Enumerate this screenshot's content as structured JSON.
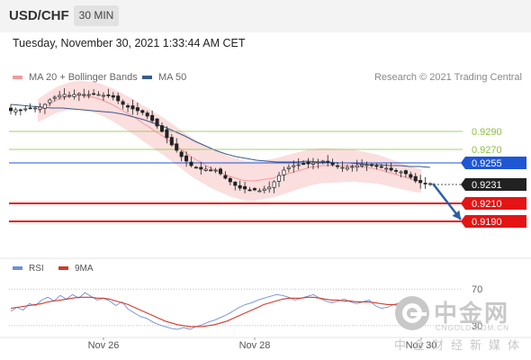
{
  "header": {
    "pair": "USD/CHF",
    "timeframe": "30 MIN"
  },
  "datetime": "Tuesday, November 30, 2021 1:33:44 AM CET",
  "legend": {
    "bollinger_label": "MA 20 + Bollinger Bands",
    "ma50_label": "MA 50",
    "research": "Research © 2021 Trading Central"
  },
  "rsi_legend": {
    "rsi_label": "RSI",
    "ma_label": "9MA"
  },
  "watermark": {
    "brand": "中金网",
    "url": "CNGOLD.COM.CN",
    "slogan": "中金财经新媒体"
  },
  "colors": {
    "candle": "#222222",
    "bollinger_band": "#fbdede",
    "ma20": "#f29a9a",
    "ma50": "#3a5a8c",
    "level_green": "#8bbf3c",
    "level_blue": "#1f56d6",
    "level_red": "#e41414",
    "current_price": "#222222",
    "arrow": "#2a5ea8",
    "rsi": "#6f8fd6",
    "rsi_ma": "#d33a2a"
  },
  "chart_data": [
    {
      "type": "candlestick",
      "xlabel": "",
      "ylabel": "",
      "x_ticks": [
        "Nov 26",
        "Nov 28",
        "Nov 30"
      ],
      "ylim": [
        0.9179,
        0.9339
      ],
      "levels": [
        {
          "value": 0.929,
          "label": "0.9290",
          "style": "green-line"
        },
        {
          "value": 0.927,
          "label": "0.9270",
          "style": "green-line"
        },
        {
          "value": 0.9255,
          "label": "0.9255",
          "style": "blue-tag"
        },
        {
          "value": 0.9231,
          "label": "0.9231",
          "style": "current-price-tag"
        },
        {
          "value": 0.921,
          "label": "0.9210",
          "style": "red-tag"
        },
        {
          "value": 0.919,
          "label": "0.9190",
          "style": "red-tag"
        }
      ],
      "forecast_arrow": {
        "from": 0.9232,
        "to": 0.919
      },
      "closes": [
        0.9313,
        0.9314,
        0.9314,
        0.9315,
        0.9316,
        0.9316,
        0.9317,
        0.932,
        0.9325,
        0.9328,
        0.933,
        0.9331,
        0.933,
        0.9331,
        0.9332,
        0.9331,
        0.9331,
        0.9332,
        0.9331,
        0.933,
        0.933,
        0.9328,
        0.9324,
        0.932,
        0.9317,
        0.9315,
        0.9313,
        0.9311,
        0.9307,
        0.9302,
        0.9296,
        0.929,
        0.9283,
        0.9275,
        0.9269,
        0.9262,
        0.9257,
        0.9252,
        0.925,
        0.9248,
        0.9248,
        0.9247,
        0.9247,
        0.9243,
        0.9238,
        0.9234,
        0.923,
        0.9227,
        0.9226,
        0.9225,
        0.9225,
        0.9224,
        0.9226,
        0.9228,
        0.9234,
        0.9241,
        0.9247,
        0.925,
        0.9252,
        0.9253,
        0.9254,
        0.9254,
        0.9255,
        0.9256,
        0.9257,
        0.9256,
        0.9253,
        0.9251,
        0.925,
        0.925,
        0.9251,
        0.9252,
        0.9253,
        0.9253,
        0.9252,
        0.9251,
        0.925,
        0.9249,
        0.9247,
        0.9246,
        0.9245,
        0.9243,
        0.9239,
        0.9235,
        0.9233,
        0.9232,
        0.9232
      ],
      "ma20": [
        0.9313,
        0.9317,
        0.9321,
        0.9325,
        0.9327,
        0.9329,
        0.933,
        0.933,
        0.9329,
        0.9328,
        0.9326,
        0.9323,
        0.932,
        0.9316,
        0.9312,
        0.9308,
        0.9304,
        0.9299,
        0.9295,
        0.929,
        0.9286,
        0.9281,
        0.9276,
        0.9271,
        0.9266,
        0.9261,
        0.9257,
        0.9253,
        0.9249,
        0.9246,
        0.9243,
        0.924,
        0.9238,
        0.9236,
        0.9235,
        0.9235,
        0.9236,
        0.9237,
        0.9238,
        0.924,
        0.9242,
        0.9244,
        0.9246,
        0.9248,
        0.925,
        0.9251,
        0.9252,
        0.9252,
        0.9252,
        0.9252,
        0.9252,
        0.9252,
        0.9251,
        0.925,
        0.9249,
        0.9248,
        0.9246,
        0.9244,
        0.9242,
        0.924,
        0.9238,
        0.9236,
        0.9235
      ],
      "ma50": [
        0.932,
        0.9319,
        0.9318,
        0.9317,
        0.9316,
        0.9316,
        0.9315,
        0.9314,
        0.9313,
        0.9312,
        0.9311,
        0.9309,
        0.9306,
        0.9303,
        0.9299,
        0.9295,
        0.929,
        0.9285,
        0.9279,
        0.9274,
        0.9269,
        0.9265,
        0.9262,
        0.926,
        0.9258,
        0.9257,
        0.9256,
        0.9256,
        0.9256,
        0.9257,
        0.9256,
        0.9256,
        0.9255,
        0.9255,
        0.9254,
        0.9253,
        0.9253,
        0.9252,
        0.9252,
        0.9251,
        0.9251,
        0.925
      ]
    },
    {
      "type": "line",
      "title": "RSI",
      "xlabel": "",
      "ylabel": "",
      "ylim": [
        20,
        80
      ],
      "reference_lines": [
        70,
        30
      ],
      "y_ticks": [
        "70",
        "30"
      ],
      "series": [
        {
          "name": "RSI",
          "values": [
            46,
            50,
            47,
            54,
            52,
            58,
            61,
            57,
            63,
            59,
            64,
            60,
            66,
            62,
            58,
            60,
            57,
            52,
            56,
            48,
            44,
            40,
            38,
            34,
            31,
            29,
            27,
            26,
            28,
            26,
            29,
            31,
            34,
            36,
            39,
            42,
            46,
            50,
            53,
            55,
            58,
            60,
            62,
            64,
            63,
            61,
            58,
            60,
            62,
            64,
            60,
            57,
            55,
            57,
            59,
            56,
            54,
            56,
            58,
            52,
            49,
            50,
            53,
            55,
            51,
            48
          ]
        },
        {
          "name": "9MA",
          "values": [
            49,
            50,
            51,
            52,
            53,
            54,
            56,
            57,
            58,
            59,
            60,
            61,
            61,
            61,
            60,
            60,
            59,
            57,
            55,
            53,
            50,
            47,
            44,
            41,
            38,
            35,
            33,
            31,
            30,
            29,
            29,
            29,
            30,
            31,
            33,
            35,
            38,
            41,
            44,
            47,
            50,
            53,
            55,
            57,
            59,
            60,
            60,
            60,
            61,
            61,
            60,
            59,
            58,
            58,
            57,
            57,
            56,
            56,
            56,
            55,
            54,
            53,
            53,
            52,
            52,
            51
          ]
        }
      ]
    }
  ]
}
